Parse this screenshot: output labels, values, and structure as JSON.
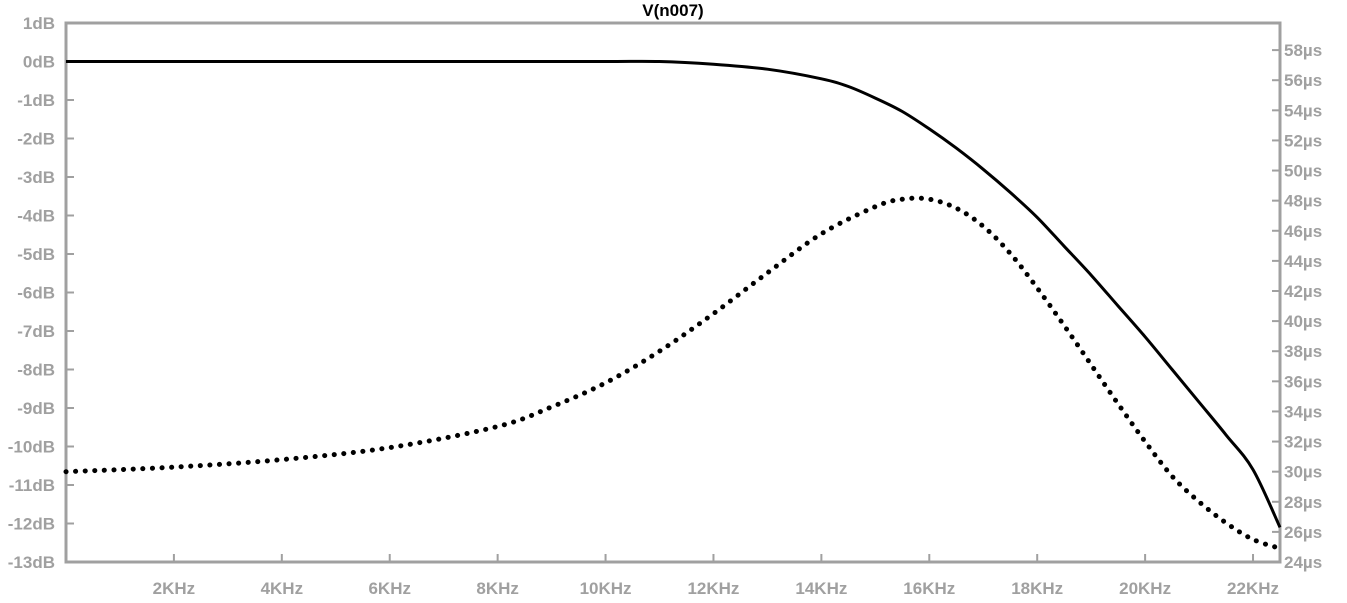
{
  "chart_data": {
    "type": "line",
    "title": "V(n007)",
    "xlabel": "",
    "ylabel": "",
    "y2label": "",
    "x_unit": "Hz",
    "xlim": [
      0,
      22500
    ],
    "x_ticks": [
      2000,
      4000,
      6000,
      8000,
      10000,
      12000,
      14000,
      16000,
      18000,
      20000,
      22000
    ],
    "x_tick_labels": [
      "2KHz",
      "4KHz",
      "6KHz",
      "8KHz",
      "10KHz",
      "12KHz",
      "14KHz",
      "16KHz",
      "18KHz",
      "20KHz",
      "22KHz"
    ],
    "ylim": [
      -13,
      1
    ],
    "y_ticks": [
      1,
      0,
      -1,
      -2,
      -3,
      -4,
      -5,
      -6,
      -7,
      -8,
      -9,
      -10,
      -11,
      -12,
      -13
    ],
    "y_tick_labels": [
      "1dB",
      "0dB",
      "-1dB",
      "-2dB",
      "-3dB",
      "-4dB",
      "-5dB",
      "-6dB",
      "-7dB",
      "-8dB",
      "-9dB",
      "-10dB",
      "-11dB",
      "-12dB",
      "-13dB"
    ],
    "y2lim": [
      24,
      59.8
    ],
    "y2_ticks": [
      58,
      56,
      54,
      52,
      50,
      48,
      46,
      44,
      42,
      40,
      38,
      36,
      34,
      32,
      30,
      28,
      26,
      24
    ],
    "y2_tick_labels": [
      "58µs",
      "56µs",
      "54µs",
      "52µs",
      "50µs",
      "48µs",
      "46µs",
      "44µs",
      "42µs",
      "40µs",
      "38µs",
      "36µs",
      "34µs",
      "32µs",
      "30µs",
      "28µs",
      "26µs",
      "24µs"
    ],
    "grid": false,
    "series": [
      {
        "style": "solid",
        "axis": "left",
        "x": [
          0,
          2000,
          4000,
          6000,
          8000,
          10000,
          11000,
          12000,
          13000,
          14000,
          14500,
          15000,
          15500,
          16000,
          16500,
          17000,
          17500,
          18000,
          18500,
          19000,
          19500,
          20000,
          20500,
          21000,
          21500,
          22000,
          22500
        ],
        "y": [
          0,
          0,
          0,
          0,
          0,
          0,
          0,
          -0.07,
          -0.2,
          -0.45,
          -0.65,
          -0.95,
          -1.3,
          -1.75,
          -2.25,
          -2.8,
          -3.4,
          -4.05,
          -4.8,
          -5.55,
          -6.35,
          -7.15,
          -8.0,
          -8.85,
          -9.7,
          -10.6,
          -12.1
        ]
      },
      {
        "style": "dotted",
        "axis": "right",
        "x": [
          0,
          2000,
          4000,
          6000,
          8000,
          9000,
          10000,
          11000,
          12000,
          13000,
          14000,
          15000,
          15500,
          16000,
          16500,
          17000,
          17500,
          18000,
          18500,
          19000,
          19500,
          20000,
          20500,
          21000,
          21500,
          22000,
          22500
        ],
        "y": [
          30.0,
          30.3,
          30.8,
          31.6,
          33.0,
          34.3,
          35.9,
          38.0,
          40.5,
          43.2,
          45.8,
          47.6,
          48.1,
          48.1,
          47.5,
          46.3,
          44.5,
          42.2,
          39.7,
          37.1,
          34.5,
          32.0,
          29.7,
          28.0,
          26.6,
          25.5,
          24.9
        ]
      }
    ]
  },
  "colors": {
    "background": "#ffffff",
    "frame": "#a0a0a0",
    "trace": "#000000",
    "tick_label": "#a0a0a0",
    "title": "#000000"
  }
}
